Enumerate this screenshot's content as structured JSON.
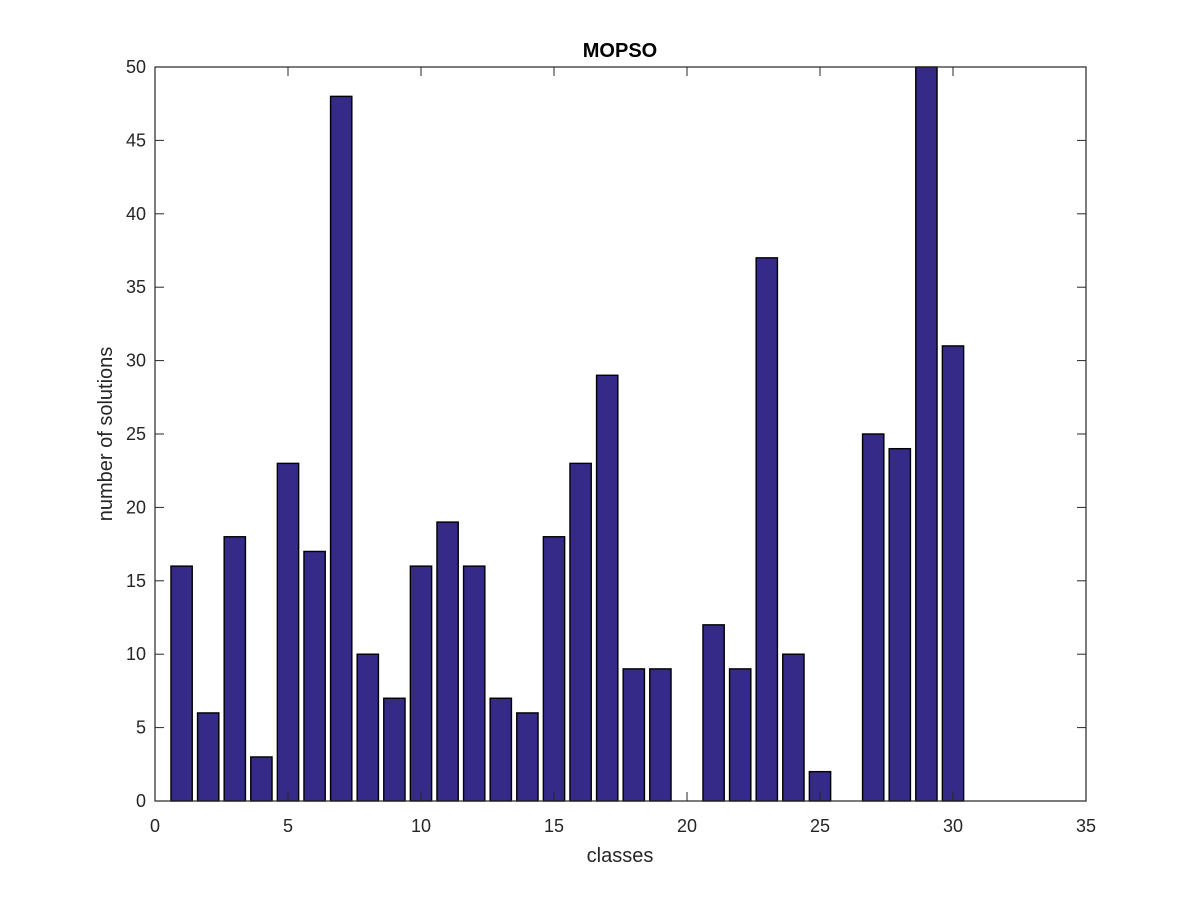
{
  "chart_data": {
    "type": "bar",
    "title": "MOPSO",
    "xlabel": "classes",
    "ylabel": "number of solutions",
    "x": [
      1,
      2,
      3,
      4,
      5,
      6,
      7,
      8,
      9,
      10,
      11,
      12,
      13,
      14,
      15,
      16,
      17,
      18,
      19,
      20,
      21,
      22,
      23,
      24,
      25,
      26,
      27,
      28,
      29,
      30
    ],
    "values": [
      16,
      6,
      18,
      3,
      23,
      17,
      48,
      10,
      7,
      16,
      19,
      16,
      7,
      6,
      18,
      23,
      29,
      9,
      9,
      0,
      12,
      9,
      37,
      10,
      2,
      0,
      25,
      24,
      50,
      31
    ],
    "xlim": [
      0,
      35
    ],
    "ylim": [
      0,
      50
    ],
    "xticks": [
      0,
      5,
      10,
      15,
      20,
      25,
      30,
      35
    ],
    "yticks": [
      0,
      5,
      10,
      15,
      20,
      25,
      30,
      35,
      40,
      45,
      50
    ],
    "grid": false,
    "colors": {
      "bar_fill": "#352A87",
      "bar_edge": "#000000",
      "axis": "#262626"
    }
  }
}
